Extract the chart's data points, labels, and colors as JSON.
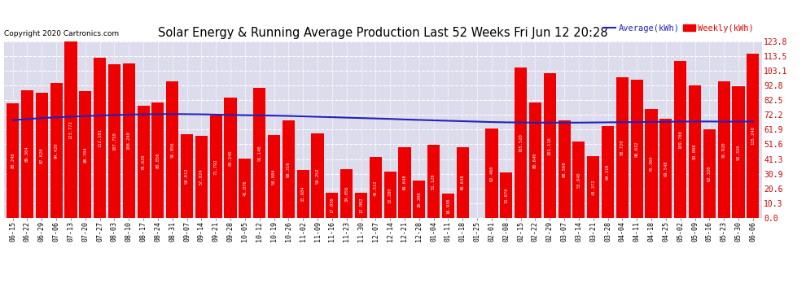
{
  "title": "Solar Energy & Running Average Production Last 52 Weeks Fri Jun 12 20:28",
  "copyright": "Copyright 2020 Cartronics.com",
  "legend_avg": "Average(kWh)",
  "legend_weekly": "Weekly(kWh)",
  "bar_color": "#EE0000",
  "avg_line_color": "#2222BB",
  "background_color": "#FFFFFF",
  "plot_bg_color": "#DCDCEC",
  "ylabel_right_color": "#CC0000",
  "ylim": [
    0,
    123.8
  ],
  "yticks": [
    0.0,
    10.3,
    20.6,
    30.9,
    41.3,
    51.6,
    61.9,
    72.2,
    82.5,
    92.8,
    103.1,
    113.5,
    123.8
  ],
  "categories": [
    "06-15",
    "06-22",
    "06-29",
    "07-06",
    "07-13",
    "07-20",
    "07-27",
    "08-03",
    "08-10",
    "08-17",
    "08-24",
    "08-31",
    "09-07",
    "09-14",
    "09-21",
    "09-28",
    "10-05",
    "10-12",
    "10-19",
    "10-26",
    "11-02",
    "11-09",
    "11-16",
    "11-23",
    "11-30",
    "12-07",
    "12-14",
    "12-21",
    "12-28",
    "01-04",
    "01-11",
    "01-18",
    "01-25",
    "02-01",
    "02-08",
    "02-15",
    "02-22",
    "02-29",
    "03-07",
    "03-14",
    "03-21",
    "03-28",
    "04-04",
    "04-11",
    "04-18",
    "04-25",
    "05-02",
    "05-09",
    "05-16",
    "05-23",
    "05-30",
    "06-06"
  ],
  "weekly_values": [
    80.248,
    89.304,
    87.62,
    94.42,
    123.772,
    88.704,
    112.181,
    107.75,
    108.24,
    78.62,
    80.856,
    95.956,
    58.612,
    57.824,
    71.792,
    84.24,
    41.876,
    91.14,
    58.084,
    68.316,
    33.684,
    59.252,
    17.936,
    34.056,
    17.992,
    42.512,
    32.28,
    49.648,
    26.208,
    51.128,
    16.936,
    49.648,
    0.096,
    62.46,
    31.676,
    105.52,
    80.64,
    101.116,
    68.568,
    53.84,
    43.372,
    64.316,
    98.72,
    96.632,
    76.36,
    69.548,
    109.78,
    93.008,
    62.32,
    95.92,
    92.32,
    115.24
  ],
  "avg_values": [
    68.5,
    69.3,
    70.0,
    70.5,
    71.0,
    71.4,
    71.8,
    72.1,
    72.4,
    72.6,
    72.7,
    72.8,
    72.7,
    72.6,
    72.4,
    72.2,
    72.0,
    71.9,
    71.7,
    71.5,
    71.2,
    70.9,
    70.6,
    70.3,
    70.0,
    69.7,
    69.4,
    69.0,
    68.7,
    68.4,
    68.1,
    67.8,
    67.5,
    67.2,
    67.0,
    66.9,
    66.8,
    66.8,
    66.8,
    66.8,
    66.9,
    67.0,
    67.1,
    67.2,
    67.3,
    67.4,
    67.5,
    67.6,
    67.6,
    67.5,
    67.5,
    67.6
  ]
}
